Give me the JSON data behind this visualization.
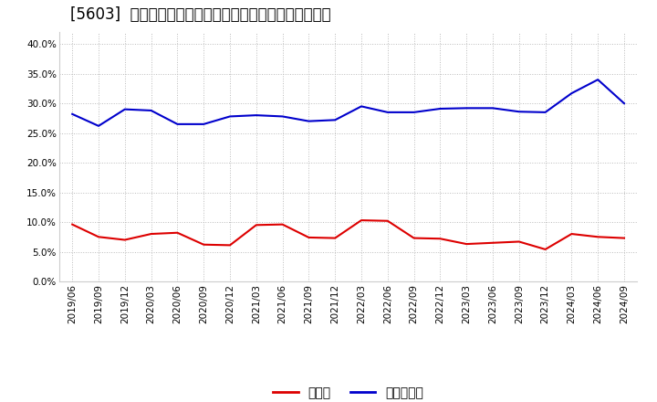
{
  "title": "[5603]  現預金、有利子負債の総資産に対する比率の推移",
  "x_labels": [
    "2019/06",
    "2019/09",
    "2019/12",
    "2020/03",
    "2020/06",
    "2020/09",
    "2020/12",
    "2021/03",
    "2021/06",
    "2021/09",
    "2021/12",
    "2022/03",
    "2022/06",
    "2022/09",
    "2022/12",
    "2023/03",
    "2023/06",
    "2023/09",
    "2023/12",
    "2024/03",
    "2024/06",
    "2024/09"
  ],
  "cash": [
    0.096,
    0.075,
    0.07,
    0.08,
    0.082,
    0.062,
    0.061,
    0.095,
    0.096,
    0.074,
    0.073,
    0.103,
    0.102,
    0.073,
    0.072,
    0.063,
    0.065,
    0.067,
    0.054,
    0.08,
    0.075,
    0.073
  ],
  "interest_bearing_debt": [
    0.282,
    0.262,
    0.29,
    0.288,
    0.265,
    0.265,
    0.278,
    0.28,
    0.278,
    0.27,
    0.272,
    0.295,
    0.285,
    0.285,
    0.291,
    0.292,
    0.292,
    0.286,
    0.285,
    0.317,
    0.34,
    0.3
  ],
  "cash_color": "#dd0000",
  "debt_color": "#0000cc",
  "background_color": "#ffffff",
  "grid_color": "#bbbbbb",
  "ylim": [
    0.0,
    0.42
  ],
  "yticks": [
    0.0,
    0.05,
    0.1,
    0.15,
    0.2,
    0.25,
    0.3,
    0.35,
    0.4
  ],
  "legend_cash": "現預金",
  "legend_debt": "有利子負債",
  "title_fontsize": 12,
  "axis_fontsize": 7.5,
  "legend_fontsize": 10
}
